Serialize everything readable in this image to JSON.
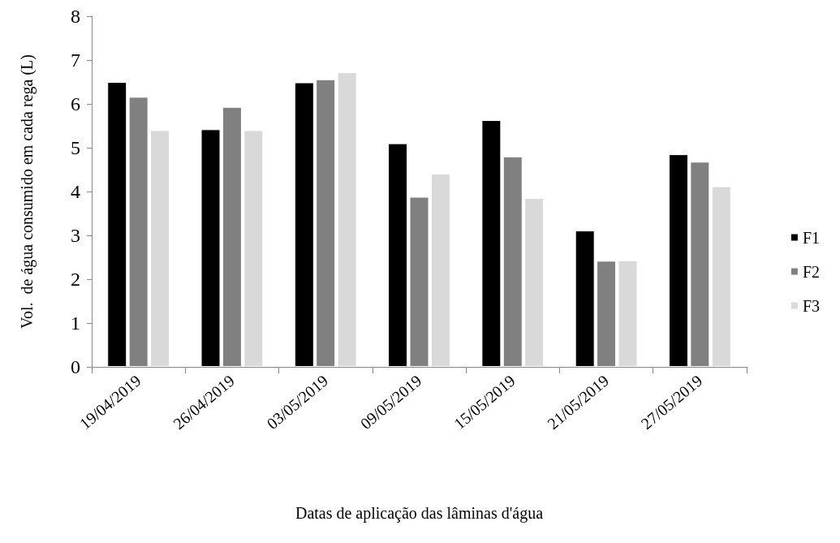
{
  "chart_data": {
    "type": "bar",
    "xlabel": "Datas de aplicação das lâminas d'água",
    "ylabel": "Vol.  de água consumido em cada rega (L)",
    "categories": [
      "19/04/2019",
      "26/04/2019",
      "03/05/2019",
      "09/05/2019",
      "15/05/2019",
      "21/05/2019",
      "27/05/2019"
    ],
    "series": [
      {
        "name": "F1",
        "color": "#000000",
        "values": [
          6.5,
          5.42,
          6.49,
          5.1,
          5.63,
          3.11,
          4.85
        ]
      },
      {
        "name": "F2",
        "color": "#808080",
        "values": [
          6.16,
          5.93,
          6.56,
          3.88,
          4.8,
          2.42,
          4.68
        ]
      },
      {
        "name": "F3",
        "color": "#d9d9d9",
        "values": [
          5.4,
          5.4,
          6.72,
          4.41,
          3.85,
          2.43,
          4.12
        ]
      }
    ],
    "ylim": [
      0,
      8
    ],
    "yticks": [
      0,
      1,
      2,
      3,
      4,
      5,
      6,
      7,
      8
    ],
    "grid": false,
    "legend": "right"
  }
}
